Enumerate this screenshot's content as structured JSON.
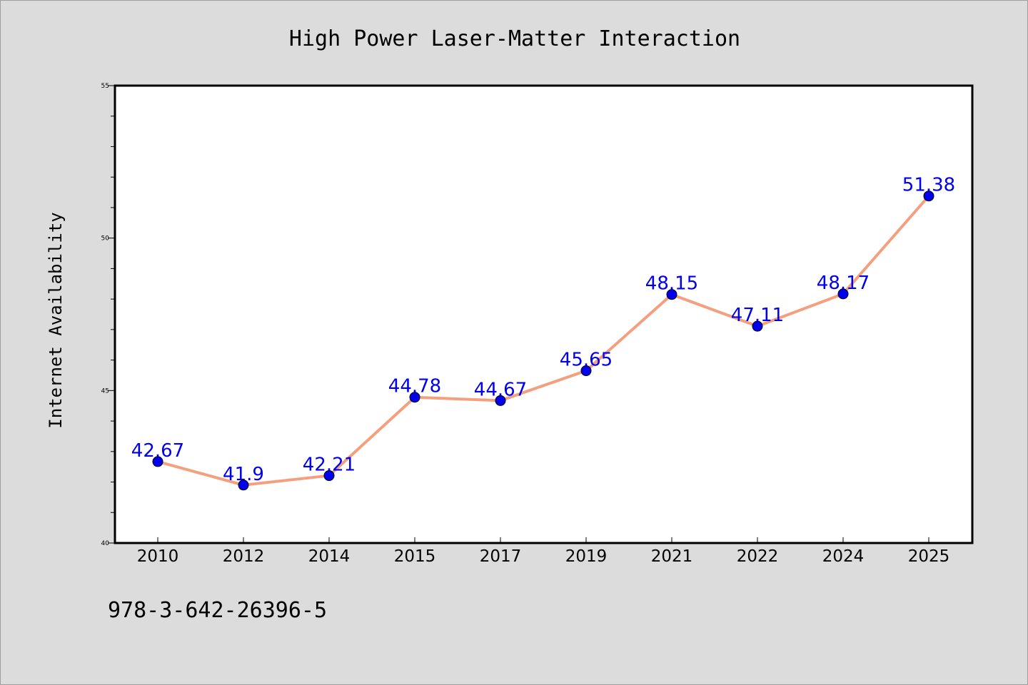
{
  "chart_data": {
    "type": "line",
    "title": "High Power Laser-Matter Interaction",
    "xlabel": "",
    "ylabel": "Internet Availability",
    "categories": [
      "2010",
      "2012",
      "2014",
      "2015",
      "2017",
      "2019",
      "2021",
      "2022",
      "2024",
      "2025"
    ],
    "series": [
      {
        "values": [
          42.67,
          41.9,
          42.21,
          44.78,
          44.67,
          45.65,
          48.15,
          47.11,
          48.17,
          51.38
        ],
        "data_labels": [
          "42.67",
          "41.9",
          "42.21",
          "44.78",
          "44.67",
          "45.65",
          "48.15",
          "47.11",
          "48.17",
          "51.38"
        ]
      }
    ],
    "ylim": [
      40,
      55
    ],
    "yticks": [
      40,
      45,
      50,
      55
    ],
    "ytick_labels": [
      "40",
      "45",
      "50",
      "55"
    ],
    "grid": false,
    "colors": {
      "line": "#f4a07f",
      "marker": "#0000ee",
      "data_label": "#0000ee",
      "background": "#dcdcdc",
      "plot_background": "#ffffff"
    }
  },
  "footer_text": "978-3-642-26396-5"
}
